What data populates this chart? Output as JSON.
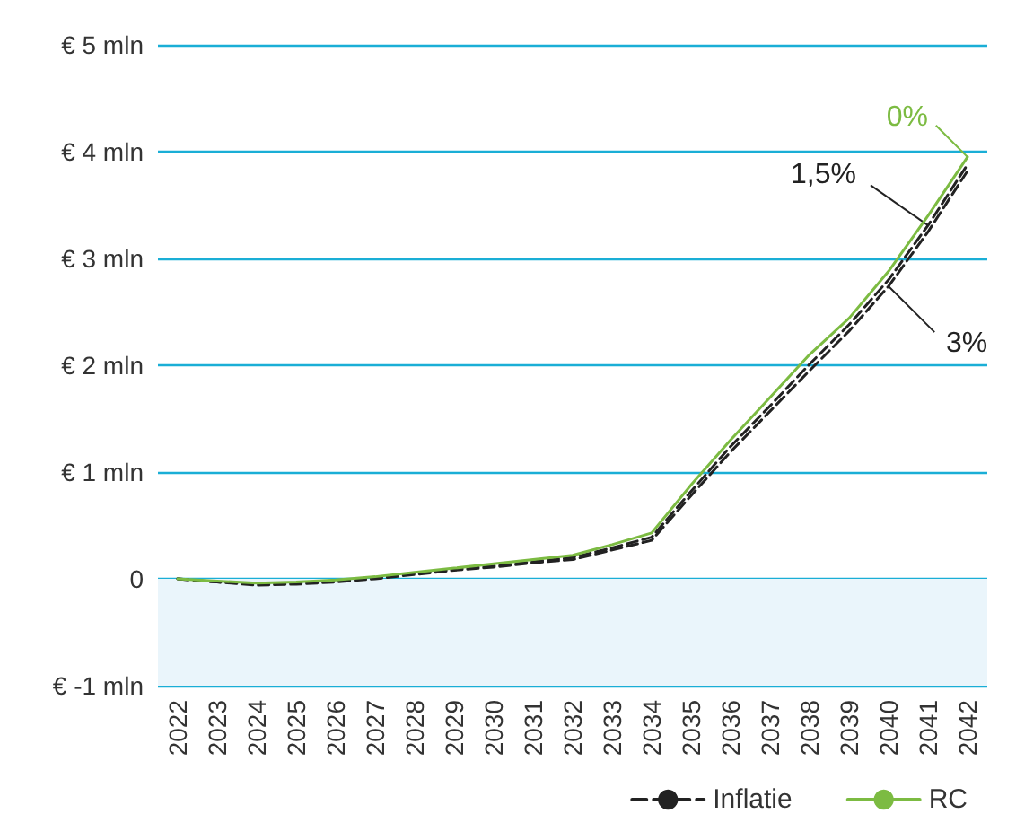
{
  "chart_data": {
    "type": "line",
    "categories": [
      "2022",
      "2023",
      "2024",
      "2025",
      "2026",
      "2027",
      "2028",
      "2029",
      "2030",
      "2031",
      "2032",
      "2033",
      "2034",
      "2035",
      "2036",
      "2037",
      "2038",
      "2039",
      "2040",
      "2041",
      "2042"
    ],
    "series": [
      {
        "name": "Inflatie",
        "color": "#222222",
        "line_style": "dashed",
        "values": [
          0,
          -0.03,
          -0.05,
          -0.04,
          -0.02,
          0.01,
          0.05,
          0.09,
          0.12,
          0.16,
          0.2,
          0.29,
          0.39,
          0.82,
          1.24,
          1.62,
          2.01,
          2.38,
          2.8,
          3.31,
          3.88
        ]
      },
      {
        "color": "#222222",
        "line_style": "dashed",
        "values": [
          0,
          -0.03,
          -0.06,
          -0.05,
          -0.03,
          0,
          0.04,
          0.08,
          0.11,
          0.15,
          0.18,
          0.27,
          0.36,
          0.78,
          1.19,
          1.57,
          1.95,
          2.32,
          2.74,
          3.25,
          3.82
        ]
      },
      {
        "name": "RC",
        "color": "#7cbb42",
        "line_style": "solid",
        "values": [
          0,
          -0.02,
          -0.04,
          -0.03,
          -0.01,
          0.02,
          0.06,
          0.1,
          0.14,
          0.18,
          0.22,
          0.32,
          0.43,
          0.88,
          1.3,
          1.7,
          2.1,
          2.44,
          2.88,
          3.4,
          3.95
        ]
      }
    ],
    "ylim": [
      -1,
      5
    ],
    "yticks": [
      {
        "value": -1,
        "label": "€ -1 mln"
      },
      0,
      {
        "value": 1,
        "label": "€ 1 mln"
      },
      {
        "value": 2,
        "label": "€ 2 mln"
      },
      {
        "value": 3,
        "label": "€ 3 mln"
      },
      {
        "value": 4,
        "label": "€ 4 mln"
      },
      {
        "value": 5,
        "label": "€ 5 mln"
      }
    ],
    "grid": "y",
    "bands": [
      {
        "axis": "y",
        "from": -1,
        "to": 0,
        "color": "#eaf5fb"
      }
    ],
    "annotations": [
      {
        "text": "0%",
        "x": "2042",
        "y": 3.95
      },
      {
        "text": "1,5%",
        "x": "2041",
        "y": 3.31
      },
      {
        "text": "3%",
        "x": "2040",
        "y": 2.74
      }
    ],
    "legend": "bottom right",
    "marker": "none"
  }
}
